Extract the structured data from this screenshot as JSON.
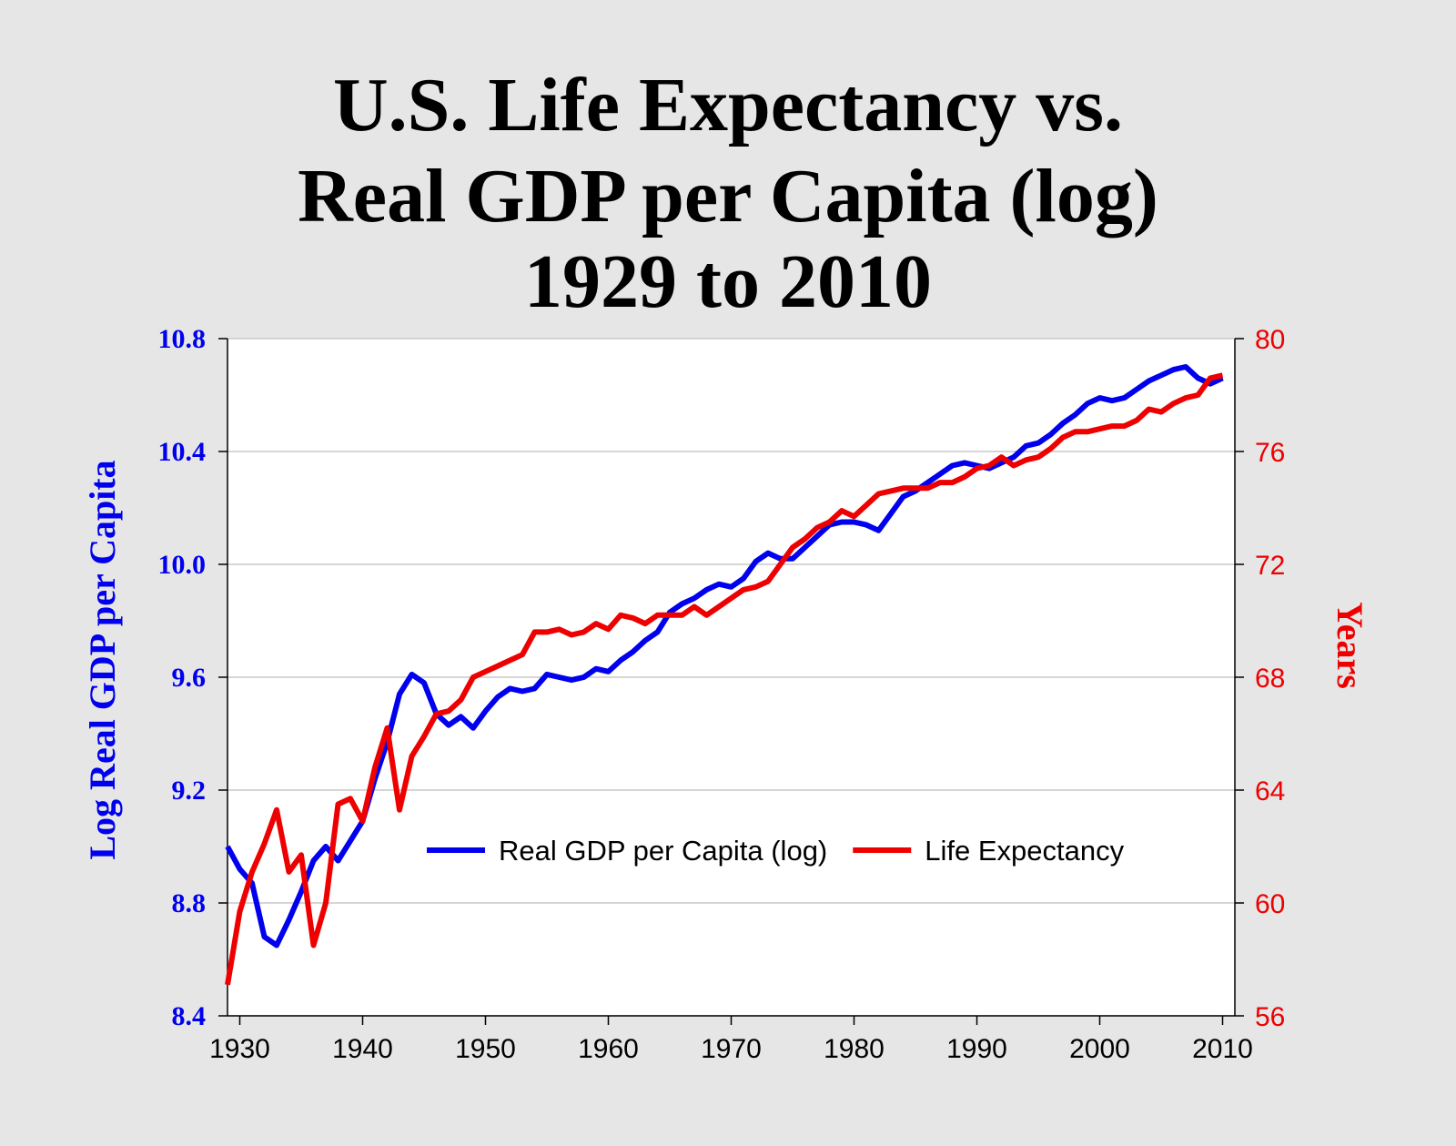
{
  "chart_data": {
    "type": "line",
    "title": [
      "U.S. Life Expectancy vs.",
      "Real GDP per Capita (log)",
      "1929 to 2010"
    ],
    "y_label": "Log Real GDP per Capita",
    "y2_label": "Years",
    "x": [
      1929,
      1930,
      1931,
      1932,
      1933,
      1934,
      1935,
      1936,
      1937,
      1938,
      1939,
      1940,
      1941,
      1942,
      1943,
      1944,
      1945,
      1946,
      1947,
      1948,
      1949,
      1950,
      1951,
      1952,
      1953,
      1954,
      1955,
      1956,
      1957,
      1958,
      1959,
      1960,
      1961,
      1962,
      1963,
      1964,
      1965,
      1966,
      1967,
      1968,
      1969,
      1970,
      1971,
      1972,
      1973,
      1974,
      1975,
      1976,
      1977,
      1978,
      1979,
      1980,
      1981,
      1982,
      1983,
      1984,
      1985,
      1986,
      1987,
      1988,
      1989,
      1990,
      1991,
      1992,
      1993,
      1994,
      1995,
      1996,
      1997,
      1998,
      1999,
      2000,
      2001,
      2002,
      2003,
      2004,
      2005,
      2006,
      2007,
      2008,
      2009,
      2010
    ],
    "series": [
      {
        "name": "Real GDP per Capita (log)",
        "color": "#0000ee",
        "axis": "y",
        "values": [
          9.0,
          8.92,
          8.87,
          8.68,
          8.65,
          8.74,
          8.84,
          8.95,
          9.0,
          8.95,
          9.02,
          9.09,
          9.24,
          9.37,
          9.54,
          9.61,
          9.58,
          9.47,
          9.43,
          9.46,
          9.42,
          9.48,
          9.53,
          9.56,
          9.55,
          9.56,
          9.61,
          9.6,
          9.59,
          9.6,
          9.63,
          9.62,
          9.66,
          9.69,
          9.73,
          9.76,
          9.83,
          9.86,
          9.88,
          9.91,
          9.93,
          9.92,
          9.95,
          10.01,
          10.04,
          10.02,
          10.02,
          10.06,
          10.1,
          10.14,
          10.15,
          10.15,
          10.14,
          10.12,
          10.18,
          10.24,
          10.26,
          10.29,
          10.32,
          10.35,
          10.36,
          10.35,
          10.34,
          10.36,
          10.38,
          10.42,
          10.43,
          10.46,
          10.5,
          10.53,
          10.57,
          10.59,
          10.58,
          10.59,
          10.62,
          10.65,
          10.67,
          10.69,
          10.7,
          10.66,
          10.64,
          10.66
        ]
      },
      {
        "name": "Life Expectancy",
        "color": "#ee0000",
        "axis": "y2",
        "values": [
          57.1,
          59.7,
          61.1,
          62.1,
          63.3,
          61.1,
          61.7,
          58.5,
          60.0,
          63.5,
          63.7,
          62.9,
          64.8,
          66.2,
          63.3,
          65.2,
          65.9,
          66.7,
          66.8,
          67.2,
          68.0,
          68.2,
          68.4,
          68.6,
          68.8,
          69.6,
          69.6,
          69.7,
          69.5,
          69.6,
          69.9,
          69.7,
          70.2,
          70.1,
          69.9,
          70.2,
          70.2,
          70.2,
          70.5,
          70.2,
          70.5,
          70.8,
          71.1,
          71.2,
          71.4,
          72.0,
          72.6,
          72.9,
          73.3,
          73.5,
          73.9,
          73.7,
          74.1,
          74.5,
          74.6,
          74.7,
          74.7,
          74.7,
          74.9,
          74.9,
          75.1,
          75.4,
          75.5,
          75.8,
          75.5,
          75.7,
          75.8,
          76.1,
          76.5,
          76.7,
          76.7,
          76.8,
          76.9,
          76.9,
          77.1,
          77.5,
          77.4,
          77.7,
          77.9,
          78.0,
          78.6,
          78.7
        ]
      }
    ],
    "xlim": [
      1929,
      2011
    ],
    "xticks": [
      1930,
      1940,
      1950,
      1960,
      1970,
      1980,
      1990,
      2000,
      2010
    ],
    "ylim": [
      8.4,
      10.8
    ],
    "yticks": [
      8.4,
      8.8,
      9.2,
      9.6,
      {
        "value": 10,
        "label": "10.0"
      },
      10.4,
      10.8
    ],
    "y2lim": [
      56,
      80
    ],
    "y2ticks": [
      56,
      60,
      64,
      68,
      72,
      76,
      80
    ],
    "grid": true,
    "legend": "center"
  }
}
